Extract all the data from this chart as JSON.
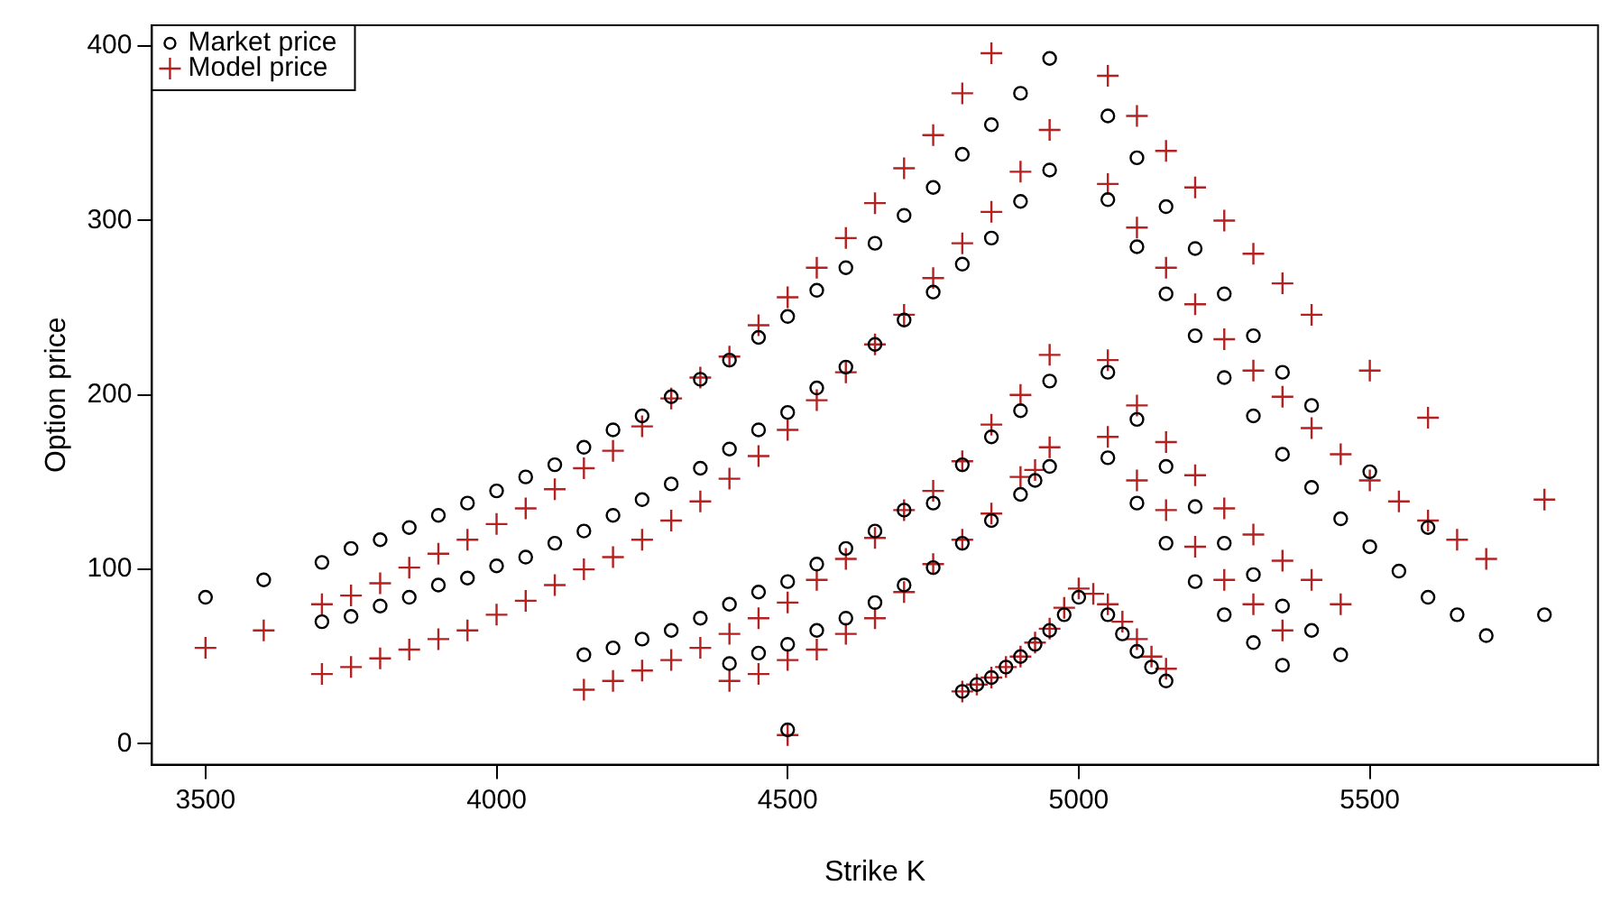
{
  "chart_data": {
    "type": "scatter",
    "xlabel": "Strike K",
    "ylabel": "Option price",
    "xlim": [
      3408,
      5892
    ],
    "ylim": [
      -12,
      412
    ],
    "xticks": [
      3500,
      4000,
      4500,
      5000,
      5500
    ],
    "yticks": [
      0,
      100,
      200,
      300,
      400
    ],
    "grid": false,
    "legend": "top left",
    "series": [
      {
        "name": "Market price",
        "color": "#000000",
        "marker": "circle",
        "x": [
          3500,
          3600,
          3700,
          3700,
          3750,
          3750,
          3800,
          3800,
          3850,
          3850,
          3900,
          3900,
          3950,
          3950,
          4000,
          4000,
          4050,
          4050,
          4100,
          4100,
          4150,
          4150,
          4150,
          4200,
          4200,
          4200,
          4250,
          4250,
          4250,
          4300,
          4300,
          4300,
          4350,
          4350,
          4350,
          4400,
          4400,
          4400,
          4400,
          4450,
          4450,
          4450,
          4450,
          4500,
          4500,
          4500,
          4500,
          4500,
          4550,
          4550,
          4550,
          4550,
          4600,
          4600,
          4600,
          4600,
          4650,
          4650,
          4650,
          4650,
          4700,
          4700,
          4700,
          4700,
          4750,
          4750,
          4750,
          4750,
          4800,
          4800,
          4800,
          4800,
          4800,
          4825,
          4850,
          4850,
          4850,
          4850,
          4850,
          4875,
          4900,
          4900,
          4900,
          4900,
          4900,
          4925,
          4925,
          4950,
          4950,
          4950,
          4950,
          4950,
          4975,
          5000,
          5050,
          5050,
          5050,
          5050,
          5050,
          5075,
          5100,
          5100,
          5100,
          5100,
          5100,
          5125,
          5150,
          5150,
          5150,
          5150,
          5150,
          5200,
          5200,
          5200,
          5200,
          5250,
          5250,
          5250,
          5250,
          5300,
          5300,
          5300,
          5300,
          5350,
          5350,
          5350,
          5350,
          5400,
          5400,
          5400,
          5450,
          5450,
          5500,
          5500,
          5550,
          5600,
          5600,
          5650,
          5700,
          5800
        ],
        "values": [
          84,
          94,
          104,
          70,
          112,
          73,
          117,
          79,
          124,
          84,
          131,
          91,
          138,
          95,
          145,
          102,
          153,
          107,
          160,
          115,
          170,
          122,
          51,
          180,
          131,
          55,
          188,
          140,
          60,
          199,
          149,
          65,
          209,
          158,
          72,
          220,
          169,
          80,
          46,
          233,
          180,
          87,
          52,
          245,
          190,
          93,
          57,
          8,
          260,
          204,
          103,
          65,
          273,
          216,
          112,
          72,
          287,
          229,
          122,
          81,
          303,
          243,
          134,
          91,
          319,
          259,
          138,
          101,
          338,
          275,
          160,
          115,
          30,
          34,
          355,
          290,
          176,
          128,
          38,
          44,
          373,
          311,
          191,
          143,
          50,
          151,
          57,
          393,
          329,
          208,
          159,
          65,
          74,
          84,
          360,
          312,
          213,
          164,
          74,
          63,
          336,
          285,
          186,
          138,
          53,
          44,
          308,
          258,
          159,
          115,
          36,
          284,
          234,
          136,
          93,
          258,
          210,
          115,
          74,
          234,
          188,
          97,
          58,
          213,
          166,
          79,
          45,
          194,
          147,
          65,
          129,
          51,
          156,
          113,
          99,
          124,
          84,
          74,
          62,
          74
        ]
      },
      {
        "name": "Model price",
        "color": "#b22222",
        "marker": "cross",
        "x": [
          3500,
          3600,
          3700,
          3700,
          3750,
          3750,
          3800,
          3800,
          3850,
          3850,
          3900,
          3900,
          3950,
          3950,
          4000,
          4000,
          4050,
          4050,
          4100,
          4100,
          4150,
          4150,
          4150,
          4200,
          4200,
          4200,
          4250,
          4250,
          4250,
          4300,
          4300,
          4300,
          4350,
          4350,
          4350,
          4400,
          4400,
          4400,
          4400,
          4450,
          4450,
          4450,
          4450,
          4500,
          4500,
          4500,
          4500,
          4500,
          4550,
          4550,
          4550,
          4550,
          4600,
          4600,
          4600,
          4600,
          4650,
          4650,
          4650,
          4650,
          4700,
          4700,
          4700,
          4700,
          4750,
          4750,
          4750,
          4750,
          4800,
          4800,
          4800,
          4800,
          4800,
          4825,
          4850,
          4850,
          4850,
          4850,
          4850,
          4875,
          4900,
          4900,
          4900,
          4900,
          4925,
          4925,
          4950,
          4950,
          4950,
          4950,
          4975,
          5000,
          5025,
          5050,
          5050,
          5050,
          5050,
          5050,
          5075,
          5100,
          5100,
          5100,
          5100,
          5100,
          5125,
          5150,
          5150,
          5150,
          5150,
          5150,
          5200,
          5200,
          5200,
          5200,
          5250,
          5250,
          5250,
          5250,
          5300,
          5300,
          5300,
          5300,
          5350,
          5350,
          5350,
          5350,
          5400,
          5400,
          5400,
          5450,
          5450,
          5500,
          5500,
          5550,
          5600,
          5600,
          5650,
          5700,
          5800
        ],
        "values": [
          55,
          65,
          80,
          40,
          85,
          44,
          92,
          49,
          101,
          54,
          109,
          60,
          117,
          65,
          126,
          74,
          135,
          82,
          146,
          91,
          158,
          100,
          31,
          168,
          107,
          36,
          182,
          117,
          42,
          198,
          128,
          48,
          210,
          139,
          55,
          222,
          152,
          63,
          36,
          240,
          165,
          72,
          40,
          256,
          180,
          81,
          48,
          5,
          273,
          197,
          94,
          54,
          290,
          213,
          106,
          63,
          310,
          229,
          118,
          72,
          330,
          246,
          134,
          87,
          349,
          267,
          145,
          103,
          373,
          287,
          162,
          117,
          30,
          34,
          396,
          305,
          183,
          132,
          38,
          44,
          328,
          200,
          153,
          50,
          157,
          58,
          352,
          223,
          170,
          66,
          78,
          89,
          86,
          383,
          321,
          220,
          176,
          80,
          70,
          360,
          296,
          194,
          151,
          60,
          50,
          340,
          273,
          173,
          134,
          43,
          319,
          252,
          154,
          113,
          300,
          232,
          135,
          94,
          281,
          214,
          120,
          80,
          264,
          199,
          105,
          65,
          246,
          181,
          94,
          166,
          80,
          214,
          151,
          139,
          187,
          128,
          117,
          106,
          140
        ]
      }
    ]
  }
}
